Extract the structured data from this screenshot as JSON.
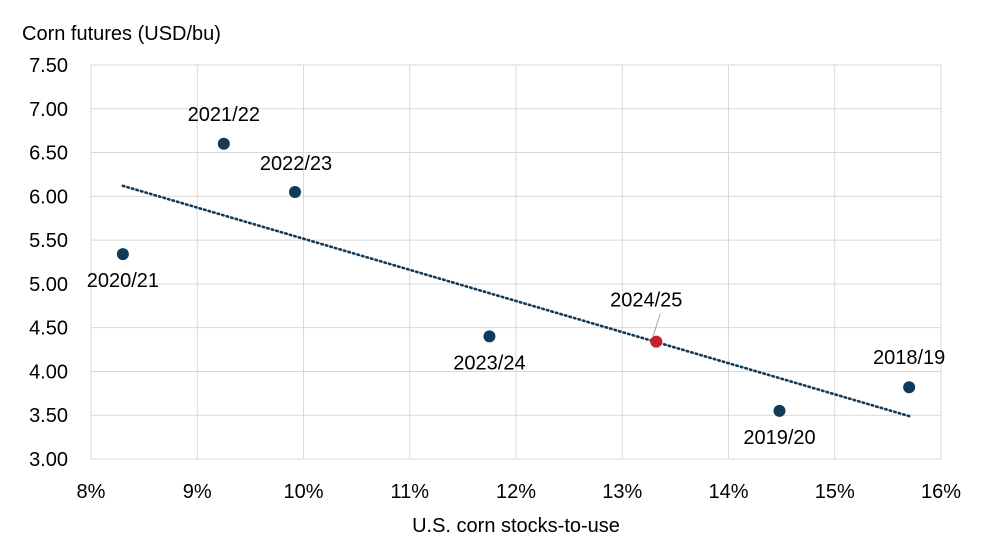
{
  "chart_data": {
    "type": "scatter",
    "title": "",
    "ylabel": "Corn futures (USD/bu)",
    "xlabel": "U.S. corn stocks-to-use",
    "xlim": [
      8,
      16
    ],
    "ylim": [
      3.0,
      7.5
    ],
    "x_ticks": [
      8,
      9,
      10,
      11,
      12,
      13,
      14,
      15,
      16
    ],
    "x_tick_labels": [
      "8%",
      "9%",
      "10%",
      "11%",
      "12%",
      "13%",
      "14%",
      "15%",
      "16%"
    ],
    "y_ticks": [
      3.0,
      3.5,
      4.0,
      4.5,
      5.0,
      5.5,
      6.0,
      6.5,
      7.0,
      7.5
    ],
    "y_tick_labels": [
      "3.00",
      "3.50",
      "4.00",
      "4.50",
      "5.00",
      "5.50",
      "6.00",
      "6.50",
      "7.00",
      "7.50"
    ],
    "grid": true,
    "points": [
      {
        "label": "2020/21",
        "x": 8.3,
        "y": 5.34,
        "color": "#0d3b5e",
        "label_pos": "below"
      },
      {
        "label": "2021/22",
        "x": 9.25,
        "y": 6.6,
        "color": "#0d3b5e",
        "label_pos": "above"
      },
      {
        "label": "2022/23",
        "x": 9.92,
        "y": 6.05,
        "color": "#0d3b5e",
        "label_pos": "above-right"
      },
      {
        "label": "2023/24",
        "x": 11.75,
        "y": 4.4,
        "color": "#0d3b5e",
        "label_pos": "below"
      },
      {
        "label": "2024/25",
        "x": 13.32,
        "y": 4.34,
        "color": "#c8202a",
        "label_pos": "above-callout"
      },
      {
        "label": "2019/20",
        "x": 14.48,
        "y": 3.55,
        "color": "#0d3b5e",
        "label_pos": "below"
      },
      {
        "label": "2018/19",
        "x": 15.7,
        "y": 3.82,
        "color": "#0d3b5e",
        "label_pos": "above"
      }
    ],
    "trendline": {
      "type": "linear",
      "style": "dotted",
      "color": "#0d3b5e",
      "x": [
        8.3,
        15.7
      ],
      "y": [
        6.12,
        3.49
      ]
    }
  }
}
